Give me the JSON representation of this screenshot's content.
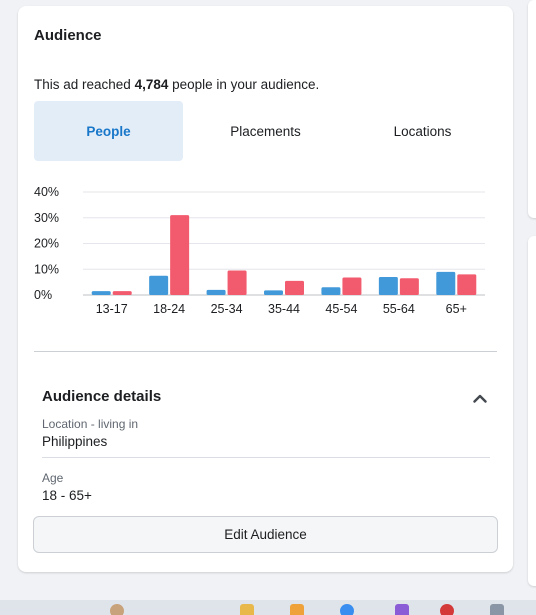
{
  "audience": {
    "title": "Audience",
    "reach_prefix": "This ad reached ",
    "reach_count": "4,784",
    "reach_suffix": " people in your audience."
  },
  "tabs": [
    {
      "label": "People",
      "active": true
    },
    {
      "label": "Placements",
      "active": false
    },
    {
      "label": "Locations",
      "active": false
    }
  ],
  "colors": {
    "series_a": "#4299d9",
    "series_b": "#f25a6d",
    "accent": "#1877c9",
    "active_tab_bg": "#e3edf8"
  },
  "chart_data": {
    "type": "bar",
    "categories": [
      "13-17",
      "18-24",
      "25-34",
      "35-44",
      "45-54",
      "55-64",
      "65+"
    ],
    "series": [
      {
        "values": [
          1.5,
          7.5,
          2,
          1.8,
          3,
          7,
          9
        ]
      },
      {
        "values": [
          1.5,
          31,
          9.5,
          5.5,
          6.8,
          6.5,
          8
        ]
      }
    ],
    "yticks": [
      "40%",
      "30%",
      "20%",
      "10%",
      "0%"
    ],
    "ylim": [
      0,
      40
    ],
    "grid": true
  },
  "details": {
    "title": "Audience details",
    "location_label": "Location - living in",
    "location_value": "Philippines",
    "age_label": "Age",
    "age_value": "18 - 65+",
    "edit_button": "Edit Audience"
  },
  "taskbar": {
    "icons": [
      "user-avatar-icon",
      "folder-icon",
      "mail-icon",
      "chat-icon",
      "visual-studio-icon",
      "chrome-icon",
      "app-icon"
    ]
  }
}
